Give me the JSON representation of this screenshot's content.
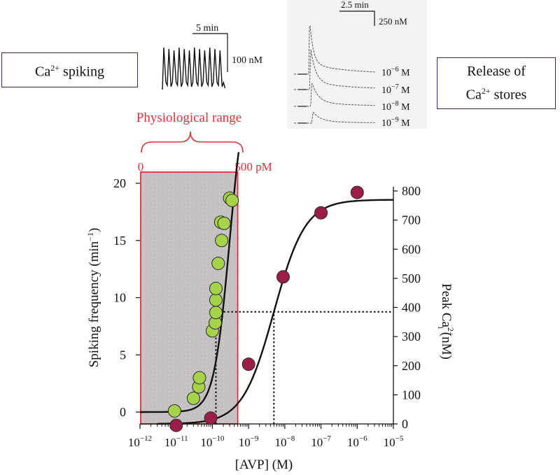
{
  "labels": {
    "box_left": {
      "base": "Ca",
      "sup": "2+",
      "rest": " spiking"
    },
    "box_right": {
      "line1": "Release of",
      "line2_base": "Ca",
      "line2_sup": "2+",
      "line2_rest": " stores"
    },
    "scale_left_time": "5 min",
    "scale_left_conc": "100 nM",
    "scale_right_time": "2.5 min",
    "scale_right_conc": "250 nM",
    "traces_right": [
      {
        "base": "10",
        "exp": "−6",
        "unit": " M"
      },
      {
        "base": "10",
        "exp": "−7",
        "unit": " M"
      },
      {
        "base": "10",
        "exp": "−8",
        "unit": " M"
      },
      {
        "base": "10",
        "exp": "−9",
        "unit": " M"
      }
    ],
    "physiological_range": "Physiological range",
    "range_start": "0",
    "range_end": "500 pM"
  },
  "colors": {
    "frame": "#2b2f6b",
    "red": "#e0303a",
    "shade": "#c4c0c3",
    "green": "#a6d34a",
    "maroon": "#9a1e47",
    "black": "#111111"
  },
  "chart_data": {
    "type": "scatter",
    "x_scale": "log",
    "x_range": [
      1e-12,
      1e-05
    ],
    "x_ticks": [
      {
        "value": 1e-12,
        "base": "10",
        "exp": "−12"
      },
      {
        "value": 1e-11,
        "base": "10",
        "exp": "−11"
      },
      {
        "value": 1e-10,
        "base": "10",
        "exp": "−10"
      },
      {
        "value": 1e-09,
        "base": "10",
        "exp": "−9"
      },
      {
        "value": 1e-08,
        "base": "10",
        "exp": "−8"
      },
      {
        "value": 1e-07,
        "base": "10",
        "exp": "−7"
      },
      {
        "value": 1e-06,
        "base": "10",
        "exp": "−6"
      },
      {
        "value": 1e-05,
        "base": "10",
        "exp": "−5"
      }
    ],
    "xlabel": "[AVP] (M)",
    "ylabel_left": {
      "text": "Spiking frequency (min",
      "sup": "−1",
      "end": ")"
    },
    "ylim_left": [
      0,
      20
    ],
    "yticks_left": [
      0,
      5,
      10,
      15,
      20
    ],
    "ylabel_right": {
      "pre": "Peak Ca",
      "sup": "2+",
      "sub": "i",
      "post": " (nM)"
    },
    "ylim_right": [
      0,
      800
    ],
    "yticks_right": [
      0,
      100,
      200,
      300,
      400,
      500,
      600,
      700,
      800
    ],
    "shaded_range": [
      1e-12,
      5e-10
    ],
    "series": [
      {
        "axis": "left",
        "color": "#a6d34a",
        "points": [
          {
            "x": 9e-12,
            "y": 0.1
          },
          {
            "x": 3e-11,
            "y": 1.2
          },
          {
            "x": 4.2e-11,
            "y": 2.2
          },
          {
            "x": 4.4e-11,
            "y": 3.0
          },
          {
            "x": 1e-10,
            "y": 7.1
          },
          {
            "x": 1.2e-10,
            "y": 7.8
          },
          {
            "x": 1.25e-10,
            "y": 8.7
          },
          {
            "x": 1.25e-10,
            "y": 9.8
          },
          {
            "x": 1.25e-10,
            "y": 10.8
          },
          {
            "x": 1.45e-10,
            "y": 13.0
          },
          {
            "x": 1.8e-10,
            "y": 15.0
          },
          {
            "x": 1.7e-10,
            "y": 16.6
          },
          {
            "x": 2.1e-10,
            "y": 16.5
          },
          {
            "x": 3e-10,
            "y": 18.7
          },
          {
            "x": 3.5e-10,
            "y": 18.5
          }
        ]
      },
      {
        "axis": "right",
        "color": "#9a1e47",
        "points": [
          {
            "x": 1e-11,
            "y": -5
          },
          {
            "x": 9e-11,
            "y": 20
          },
          {
            "x": 1e-09,
            "y": 205
          },
          {
            "x": 9e-09,
            "y": 505
          },
          {
            "x": 1e-07,
            "y": 725
          },
          {
            "x": 1e-06,
            "y": 795
          }
        ]
      }
    ],
    "fit_curves": [
      {
        "axis": "left",
        "model": "hill",
        "bottom": 0,
        "top": 30,
        "ec50": 3e-10,
        "hill": 2.0,
        "x_from": 1e-12,
        "x_to": 5.3e-10
      },
      {
        "axis": "right",
        "model": "hill",
        "bottom": 0,
        "top": 770,
        "ec50": 5e-09,
        "hill": 1.0,
        "x_from": 3e-12,
        "x_to": 1e-05
      }
    ],
    "reference_lines": [
      {
        "type": "vertical",
        "x": 1.25e-10,
        "y_left_to": 8.7
      },
      {
        "type": "horizontal_right",
        "x_from": 1.25e-10,
        "y_right": 385
      },
      {
        "type": "vertical",
        "x": 5e-09,
        "y_right_to": 385
      }
    ]
  }
}
